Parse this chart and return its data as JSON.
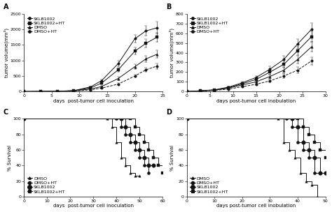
{
  "panel_A": {
    "title": "A",
    "xlabel": "days  post-tumor cell inoculation",
    "ylabel": "tumor volume(mm³)",
    "ylim": [
      0,
      2500
    ],
    "yticks": [
      0,
      500,
      1000,
      1500,
      2000,
      2500
    ],
    "xlim": [
      0,
      25
    ],
    "xticks": [
      0,
      5,
      10,
      15,
      20,
      25
    ],
    "series": [
      {
        "label": "SKLB1002",
        "marker": "o",
        "color": "#111111",
        "x": [
          0,
          3,
          6,
          9,
          12,
          14,
          17,
          20,
          22,
          24
        ],
        "y": [
          0,
          5,
          10,
          30,
          150,
          350,
          900,
          1700,
          1950,
          2050
        ],
        "yerr": [
          0,
          2,
          3,
          8,
          20,
          45,
          90,
          130,
          160,
          190
        ]
      },
      {
        "label": "SKLB1002+HT",
        "marker": "s",
        "color": "#111111",
        "x": [
          0,
          3,
          6,
          9,
          12,
          14,
          17,
          20,
          22,
          24
        ],
        "y": [
          0,
          5,
          10,
          25,
          120,
          270,
          700,
          1300,
          1550,
          1750
        ],
        "yerr": [
          0,
          2,
          3,
          7,
          18,
          35,
          75,
          110,
          130,
          150
        ]
      },
      {
        "label": "DMSO",
        "marker": "^",
        "color": "#111111",
        "x": [
          0,
          3,
          6,
          9,
          12,
          14,
          17,
          20,
          22,
          24
        ],
        "y": [
          0,
          5,
          10,
          25,
          80,
          160,
          420,
          800,
          1050,
          1200
        ],
        "yerr": [
          0,
          2,
          3,
          6,
          12,
          25,
          55,
          85,
          105,
          120
        ]
      },
      {
        "label": "DMSO+HT",
        "marker": "o",
        "color": "#111111",
        "linedash": true,
        "x": [
          0,
          3,
          6,
          9,
          12,
          14,
          17,
          20,
          22,
          24
        ],
        "y": [
          0,
          4,
          8,
          18,
          55,
          110,
          240,
          500,
          700,
          820
        ],
        "yerr": [
          0,
          1,
          2,
          5,
          9,
          18,
          35,
          55,
          75,
          90
        ]
      }
    ]
  },
  "panel_B": {
    "title": "B",
    "xlabel": "days post-tumor cell inobulation",
    "ylabel": "tumor volume(mm³)",
    "ylim": [
      0,
      800
    ],
    "yticks": [
      0,
      100,
      200,
      300,
      400,
      500,
      600,
      700,
      800
    ],
    "xlim": [
      0,
      30
    ],
    "xticks": [
      0,
      5,
      10,
      15,
      20,
      25,
      30
    ],
    "series": [
      {
        "label": "SKLB1002",
        "marker": "o",
        "color": "#111111",
        "x": [
          0,
          3,
          6,
          9,
          12,
          15,
          18,
          21,
          24,
          27
        ],
        "y": [
          0,
          8,
          18,
          45,
          90,
          145,
          230,
          330,
          490,
          640
        ],
        "yerr": [
          0,
          2,
          3,
          7,
          13,
          18,
          28,
          40,
          52,
          62
        ]
      },
      {
        "label": "SKLB1002+HT",
        "marker": "s",
        "color": "#111111",
        "x": [
          0,
          3,
          6,
          9,
          12,
          15,
          18,
          21,
          24,
          27
        ],
        "y": [
          0,
          8,
          16,
          40,
          80,
          125,
          200,
          280,
          420,
          565
        ],
        "yerr": [
          0,
          2,
          3,
          6,
          11,
          16,
          26,
          36,
          44,
          54
        ]
      },
      {
        "label": "DMSO",
        "marker": "^",
        "color": "#111111",
        "x": [
          0,
          3,
          6,
          9,
          12,
          15,
          18,
          21,
          24,
          27
        ],
        "y": [
          0,
          7,
          15,
          35,
          68,
          100,
          155,
          220,
          330,
          460
        ],
        "yerr": [
          0,
          2,
          3,
          5,
          10,
          14,
          22,
          32,
          38,
          48
        ]
      },
      {
        "label": "DMSO+HT",
        "marker": "o",
        "color": "#111111",
        "linedash": true,
        "x": [
          0,
          3,
          6,
          9,
          12,
          15,
          18,
          21,
          24,
          27
        ],
        "y": [
          0,
          6,
          12,
          25,
          50,
          75,
          110,
          160,
          220,
          315
        ],
        "yerr": [
          0,
          2,
          2,
          4,
          8,
          11,
          16,
          22,
          30,
          38
        ]
      }
    ]
  },
  "panel_C": {
    "title": "C",
    "xlabel": "days  post-tumor cell inoculation",
    "ylabel": "% Survival",
    "ylim": [
      0,
      100
    ],
    "yticks": [
      0,
      20,
      40,
      60,
      80,
      100
    ],
    "xlim": [
      0,
      60
    ],
    "xticks": [
      0,
      10,
      20,
      30,
      40,
      50,
      60
    ],
    "series": [
      {
        "label": "DMSO",
        "marker": "^",
        "color": "#111111",
        "markersize": 2.5,
        "x": [
          0,
          36,
          38,
          40,
          42,
          44,
          46,
          48,
          50
        ],
        "y": [
          100,
          100,
          90,
          70,
          50,
          40,
          30,
          27,
          27
        ]
      },
      {
        "label": "DMSO+HT",
        "marker": "o",
        "color": "#111111",
        "markersize": 3,
        "x": [
          0,
          40,
          42,
          44,
          46,
          48,
          50,
          52,
          54
        ],
        "y": [
          100,
          100,
          90,
          80,
          70,
          60,
          50,
          40,
          30
        ]
      },
      {
        "label": "SKLB1002",
        "marker": "o",
        "color": "#111111",
        "markersize": 4,
        "x": [
          0,
          42,
          44,
          46,
          48,
          50,
          52,
          54,
          56
        ],
        "y": [
          100,
          100,
          90,
          80,
          70,
          60,
          50,
          40,
          40
        ]
      },
      {
        "label": "SKLB1002+HT",
        "marker": "s",
        "color": "#111111",
        "markersize": 3,
        "x": [
          0,
          46,
          48,
          50,
          52,
          54,
          56,
          58,
          60
        ],
        "y": [
          100,
          100,
          90,
          80,
          70,
          60,
          50,
          40,
          30
        ]
      }
    ]
  },
  "panel_D": {
    "title": "D",
    "xlabel": "days post-tumor cell inobulation",
    "ylabel": "% Survival",
    "ylim": [
      0,
      100
    ],
    "yticks": [
      0,
      20,
      40,
      60,
      80,
      100
    ],
    "xlim": [
      0,
      50
    ],
    "xticks": [
      0,
      10,
      20,
      30,
      40,
      50
    ],
    "series": [
      {
        "label": "DMSO",
        "marker": "^",
        "color": "#111111",
        "markersize": 2.5,
        "x": [
          0,
          33,
          35,
          37,
          39,
          41,
          43,
          45,
          47
        ],
        "y": [
          100,
          100,
          70,
          60,
          50,
          30,
          20,
          15,
          0
        ]
      },
      {
        "label": "DMSO+HT",
        "marker": "o",
        "color": "#111111",
        "markersize": 3,
        "x": [
          0,
          36,
          38,
          40,
          42,
          44,
          46,
          48
        ],
        "y": [
          100,
          100,
          90,
          70,
          60,
          50,
          30,
          30
        ]
      },
      {
        "label": "SKLB1002",
        "marker": "o",
        "color": "#111111",
        "markersize": 4,
        "x": [
          0,
          38,
          40,
          42,
          44,
          46,
          48,
          50
        ],
        "y": [
          100,
          100,
          90,
          70,
          60,
          50,
          30,
          30
        ]
      },
      {
        "label": "SKLB1002+HT",
        "marker": "s",
        "color": "#111111",
        "markersize": 3,
        "x": [
          0,
          40,
          42,
          44,
          46,
          48,
          50
        ],
        "y": [
          100,
          100,
          90,
          80,
          70,
          60,
          50
        ]
      }
    ]
  },
  "bg_color": "#ffffff",
  "label_fontsize": 5,
  "tick_fontsize": 4.5,
  "legend_fontsize": 4.5,
  "panel_label_fontsize": 7
}
